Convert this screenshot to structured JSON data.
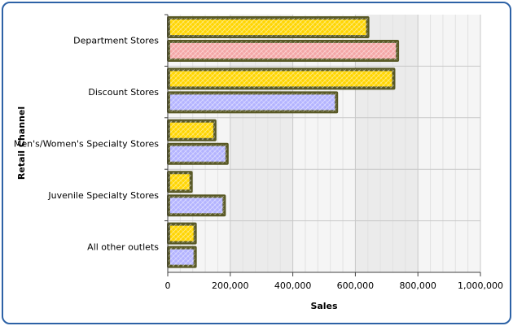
{
  "chart_data": {
    "type": "bar",
    "orientation": "horizontal",
    "categories": [
      "Department Stores",
      "Discount Stores",
      "Men's/Women's Specialty Stores",
      "Juvenile Specialty Stores",
      "All other outlets"
    ],
    "series": [
      {
        "values": [
          637000,
          720000,
          148000,
          72000,
          85000
        ],
        "color": "#ffd500"
      },
      {
        "values": [
          732000,
          537000,
          187000,
          178000,
          85000
        ],
        "colors": [
          "#f4a6a6",
          "#b3b3ff",
          "#b3b3ff",
          "#b3b3ff",
          "#b3b3ff"
        ]
      }
    ],
    "xlabel": "Sales",
    "ylabel": "Retail Channel",
    "xlim": [
      0,
      1000000
    ],
    "xticks": [
      0,
      200000,
      400000,
      600000,
      800000,
      1000000
    ],
    "xtick_labels": [
      "0",
      "200,000",
      "400,000",
      "600,000",
      "800,000",
      "1,000,000"
    ],
    "grid": true,
    "legend": "none",
    "colors": {
      "frame": "#2d62a6",
      "bar_border": "#585825"
    }
  }
}
